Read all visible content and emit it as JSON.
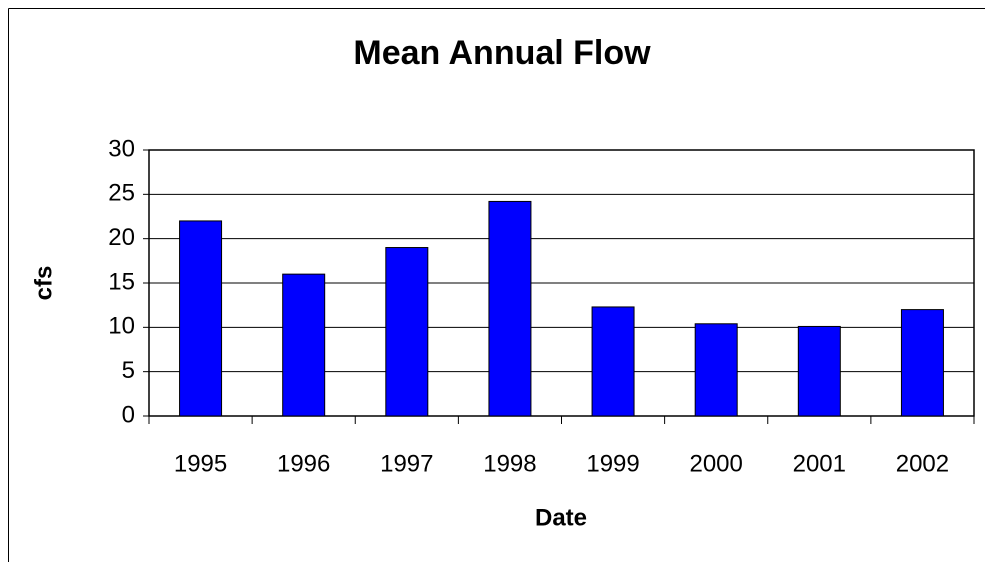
{
  "chart_data": {
    "type": "bar",
    "title": "Mean Annual Flow",
    "x_label": "Date",
    "y_label": "cfs",
    "categories": [
      "1995",
      "1996",
      "1997",
      "1998",
      "1999",
      "2000",
      "2001",
      "2002"
    ],
    "values": [
      22,
      16,
      19,
      24.2,
      12.3,
      10.4,
      10.1,
      12
    ],
    "color": "#0000ff",
    "ylim": [
      0,
      30
    ],
    "yticks": [
      0,
      5,
      10,
      15,
      20,
      25,
      30
    ],
    "grid": true
  }
}
